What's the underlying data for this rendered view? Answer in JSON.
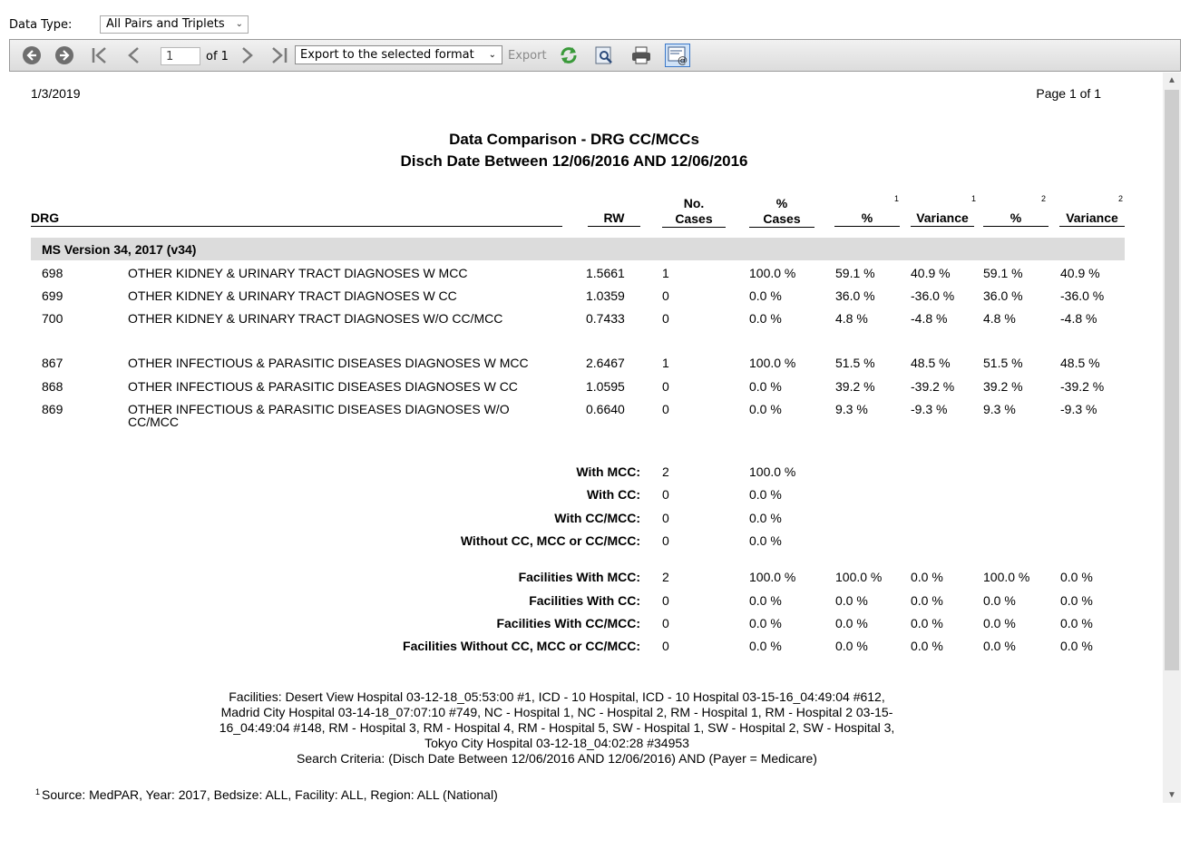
{
  "toolbar": {
    "data_type_label": "Data Type:",
    "data_type_value": "All Pairs and Triplets",
    "page_value": "1",
    "of_label": "of 1",
    "export_format": "Export to the selected format",
    "export_label": "Export",
    "icons": [
      "back-icon",
      "forward-icon",
      "first-page-icon",
      "prev-page-icon",
      "next-page-icon",
      "last-page-icon",
      "refresh-icon",
      "find-icon",
      "print-icon",
      "email-icon"
    ]
  },
  "report": {
    "date": "1/3/2019",
    "page": "Page 1 of 1",
    "title": "Data Comparison - DRG CC/MCCs",
    "subtitle": "Disch Date Between 12/06/2016 AND 12/06/2016",
    "headers": {
      "drg": "DRG",
      "rw": "RW",
      "no_cases_1": "No.",
      "no_cases_2": "Cases",
      "pct_cases_1": "%",
      "pct_cases_2": "Cases",
      "pct1": "%",
      "var1": "Variance",
      "pct2": "%",
      "var2": "Variance",
      "sup1a": "1",
      "sup1b": "1",
      "sup2a": "2",
      "sup2b": "2"
    },
    "version": "MS Version 34, 2017 (v34)",
    "rows": [
      {
        "drg": "698",
        "desc": "OTHER KIDNEY & URINARY TRACT DIAGNOSES W MCC",
        "rw": "1.5661",
        "cases": "1",
        "pct_cases": "100.0 %",
        "p1": "59.1 %",
        "v1": "40.9 %",
        "p2": "59.1 %",
        "v2": "40.9 %"
      },
      {
        "drg": "699",
        "desc": "OTHER KIDNEY & URINARY TRACT DIAGNOSES W CC",
        "rw": "1.0359",
        "cases": "0",
        "pct_cases": "0.0 %",
        "p1": "36.0 %",
        "v1": "-36.0 %",
        "p2": "36.0 %",
        "v2": "-36.0 %"
      },
      {
        "drg": "700",
        "desc": "OTHER KIDNEY & URINARY TRACT DIAGNOSES W/O CC/MCC",
        "rw": "0.7433",
        "cases": "0",
        "pct_cases": "0.0 %",
        "p1": "4.8 %",
        "v1": "-4.8 %",
        "p2": "4.8 %",
        "v2": "-4.8 %"
      },
      {
        "drg": "867",
        "desc": "OTHER INFECTIOUS & PARASITIC DISEASES DIAGNOSES W MCC",
        "rw": "2.6467",
        "cases": "1",
        "pct_cases": "100.0 %",
        "p1": "51.5 %",
        "v1": "48.5 %",
        "p2": "51.5 %",
        "v2": "48.5 %"
      },
      {
        "drg": "868",
        "desc": "OTHER INFECTIOUS & PARASITIC DISEASES DIAGNOSES W CC",
        "rw": "1.0595",
        "cases": "0",
        "pct_cases": "0.0 %",
        "p1": "39.2 %",
        "v1": "-39.2 %",
        "p2": "39.2 %",
        "v2": "-39.2 %"
      },
      {
        "drg": "869",
        "desc": "OTHER INFECTIOUS & PARASITIC DISEASES DIAGNOSES W/O",
        "desc2": "CC/MCC",
        "rw": "0.6640",
        "cases": "0",
        "pct_cases": "0.0 %",
        "p1": "9.3 %",
        "v1": "-9.3 %",
        "p2": "9.3 %",
        "v2": "-9.3 %"
      }
    ],
    "summary": [
      {
        "label": "With MCC:",
        "cases": "2",
        "pct": "100.0 %"
      },
      {
        "label": "With CC:",
        "cases": "0",
        "pct": "0.0 %"
      },
      {
        "label": "With CC/MCC:",
        "cases": "0",
        "pct": "0.0 %"
      },
      {
        "label": "Without CC, MCC or CC/MCC:",
        "cases": "0",
        "pct": "0.0 %"
      }
    ],
    "facilities": [
      {
        "label": "Facilities With MCC:",
        "cases": "2",
        "pct": "100.0 %",
        "p1": "100.0 %",
        "v1": "0.0 %",
        "p2": "100.0 %",
        "v2": "0.0 %"
      },
      {
        "label": "Facilities With CC:",
        "cases": "0",
        "pct": "0.0 %",
        "p1": "0.0 %",
        "v1": "0.0 %",
        "p2": "0.0 %",
        "v2": "0.0 %"
      },
      {
        "label": "Facilities With CC/MCC:",
        "cases": "0",
        "pct": "0.0 %",
        "p1": "0.0 %",
        "v1": "0.0 %",
        "p2": "0.0 %",
        "v2": "0.0 %"
      },
      {
        "label": "Facilities Without CC, MCC or CC/MCC:",
        "cases": "0",
        "pct": "0.0 %",
        "p1": "0.0 %",
        "v1": "0.0 %",
        "p2": "0.0 %",
        "v2": "0.0 %"
      }
    ],
    "footer_lines": [
      "Facilities: Desert View Hospital 03-12-18_05:53:00 #1, ICD - 10 Hospital, ICD - 10 Hospital 03-15-16_04:49:04 #612,",
      "Madrid City Hospital 03-14-18_07:07:10 #749, NC - Hospital 1, NC - Hospital 2, RM - Hospital 1, RM - Hospital 2 03-15-",
      "16_04:49:04 #148, RM - Hospital 3, RM - Hospital 4, RM - Hospital 5, SW - Hospital 1, SW - Hospital 2, SW - Hospital 3,",
      "Tokyo City Hospital 03-12-18_04:02:28 #34953",
      "Search Criteria:  (Disch Date Between 12/06/2016 AND 12/06/2016)  AND (Payer = Medicare)"
    ],
    "source_sup": "1",
    "source": "Source: MedPAR, Year: 2017, Bedsize: ALL, Facility: ALL, Region: ALL (National)"
  }
}
